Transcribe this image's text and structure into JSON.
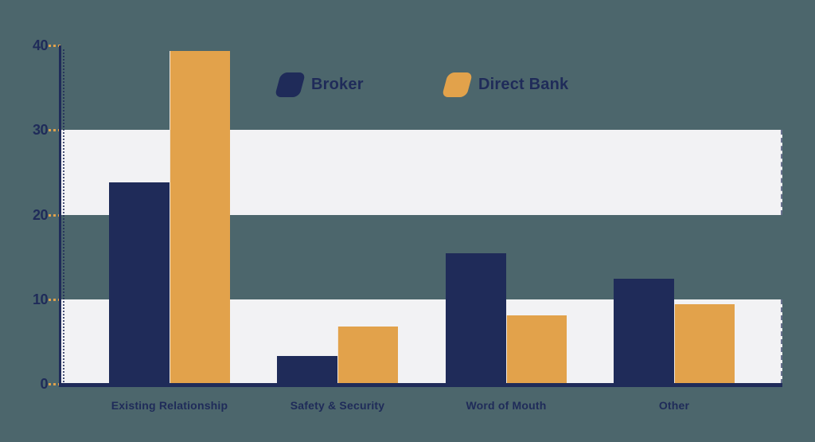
{
  "chart_data": {
    "type": "bar",
    "title": "",
    "xlabel": "",
    "ylabel": "",
    "categories": [
      "Existing Relationship",
      "Safety & Security",
      "Word of Mouth",
      "Other"
    ],
    "series": [
      {
        "name": "Broker",
        "color": "#1F2B59",
        "values": [
          23.8,
          3.3,
          15.4,
          12.4
        ]
      },
      {
        "name": "Direct Bank",
        "color": "#E2A24B",
        "values": [
          39.3,
          6.8,
          8.1,
          9.4
        ]
      }
    ],
    "ylim": [
      0,
      40
    ],
    "yticks": [
      0,
      10,
      20,
      30,
      40
    ],
    "bands": [
      [
        0,
        10
      ],
      [
        20,
        30
      ]
    ],
    "grid": "off",
    "legend_position": "top-center"
  },
  "legend": {
    "items": [
      {
        "label": "Broker",
        "color": "#1F2B59"
      },
      {
        "label": "Direct Bank",
        "color": "#E2A24B"
      }
    ]
  },
  "colors": {
    "background": "#4C666C",
    "band": "#F2F2F4",
    "navy": "#1F2B59",
    "orange": "#E2A24B",
    "tick": "#E2A24B",
    "text": "#1F2B59"
  }
}
